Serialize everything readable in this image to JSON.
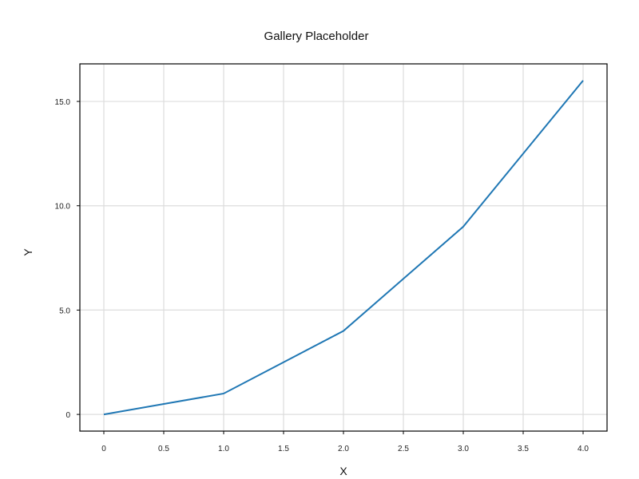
{
  "chart_data": {
    "type": "line",
    "title": "Gallery Placeholder",
    "xlabel": "X",
    "ylabel": "Y",
    "x_ticks": [
      "0",
      "0.5",
      "1.0",
      "1.5",
      "2.0",
      "2.5",
      "3.0",
      "3.5",
      "4.0"
    ],
    "y_ticks": [
      "0",
      "5.0",
      "10.0",
      "15.0"
    ],
    "x_tick_values": [
      0,
      0.5,
      1,
      1.5,
      2,
      2.5,
      3,
      3.5,
      4
    ],
    "y_tick_values": [
      0,
      5,
      10,
      15
    ],
    "xlim": [
      -0.2,
      4.2
    ],
    "ylim": [
      -0.8,
      16.8
    ],
    "grid": true,
    "series": [
      {
        "x": [
          0,
          1,
          2,
          3,
          4
        ],
        "y": [
          0,
          1,
          4,
          9,
          16
        ],
        "color": "#1f77b4"
      }
    ]
  }
}
